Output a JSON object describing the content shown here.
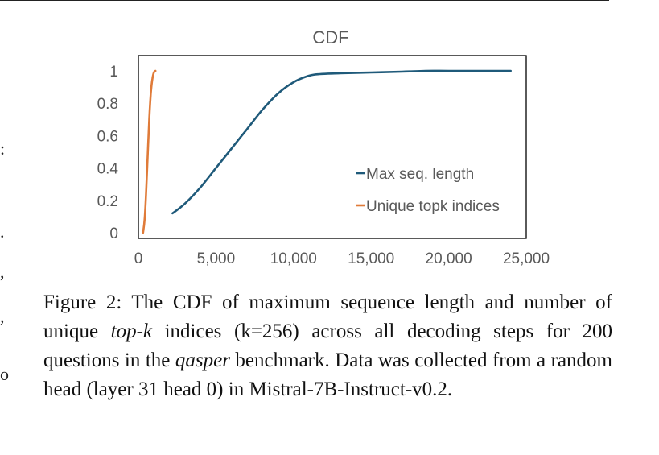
{
  "chart_data": {
    "type": "line",
    "title": "CDF",
    "xlabel": "",
    "ylabel": "",
    "xlim": [
      0,
      25000
    ],
    "ylim": [
      0,
      1
    ],
    "x_ticks": [
      0,
      5000,
      10000,
      15000,
      20000,
      25000
    ],
    "x_tick_labels": [
      "0",
      "5,000",
      "10,000",
      "15,000",
      "20,000",
      "25,000"
    ],
    "y_ticks": [
      0,
      0.2,
      0.4,
      0.6,
      0.8,
      1
    ],
    "y_tick_labels": [
      "0",
      "0.2",
      "0.4",
      "0.6",
      "0.8",
      "1"
    ],
    "grid": false,
    "legend_position": "bottom-right",
    "series": [
      {
        "name": "Max seq. length",
        "color": "#1f5a7a",
        "x": [
          2200,
          3000,
          4000,
          5000,
          6000,
          7000,
          8000,
          9000,
          10000,
          11000,
          11700,
          13000,
          15000,
          17000,
          18500,
          20000,
          22000,
          24000
        ],
        "y": [
          0.12,
          0.18,
          0.28,
          0.4,
          0.52,
          0.64,
          0.76,
          0.86,
          0.93,
          0.97,
          0.98,
          0.985,
          0.99,
          0.995,
          1.0,
          1.0,
          1.0,
          1.0
        ]
      },
      {
        "name": "Unique topk indices",
        "color": "#e07b39",
        "x": [
          300,
          400,
          500,
          600,
          700,
          800,
          900,
          1000,
          1100
        ],
        "y": [
          0.0,
          0.08,
          0.25,
          0.48,
          0.7,
          0.86,
          0.95,
          0.99,
          1.0
        ]
      }
    ]
  },
  "caption": {
    "prefix": "Figure 2: The CDF of maximum sequence length and number of unique ",
    "italic1": "top-k",
    "middle": " indices (k=256) across all decoding steps for 200 questions in the ",
    "italic2": "qasper",
    "suffix": " benchmark. Data was collected from a random head (layer 31 head 0) in Mistral-7B-Instruct-v0.2."
  },
  "margin_marks": [
    ":",
    ".",
    ",",
    ",",
    "o"
  ]
}
